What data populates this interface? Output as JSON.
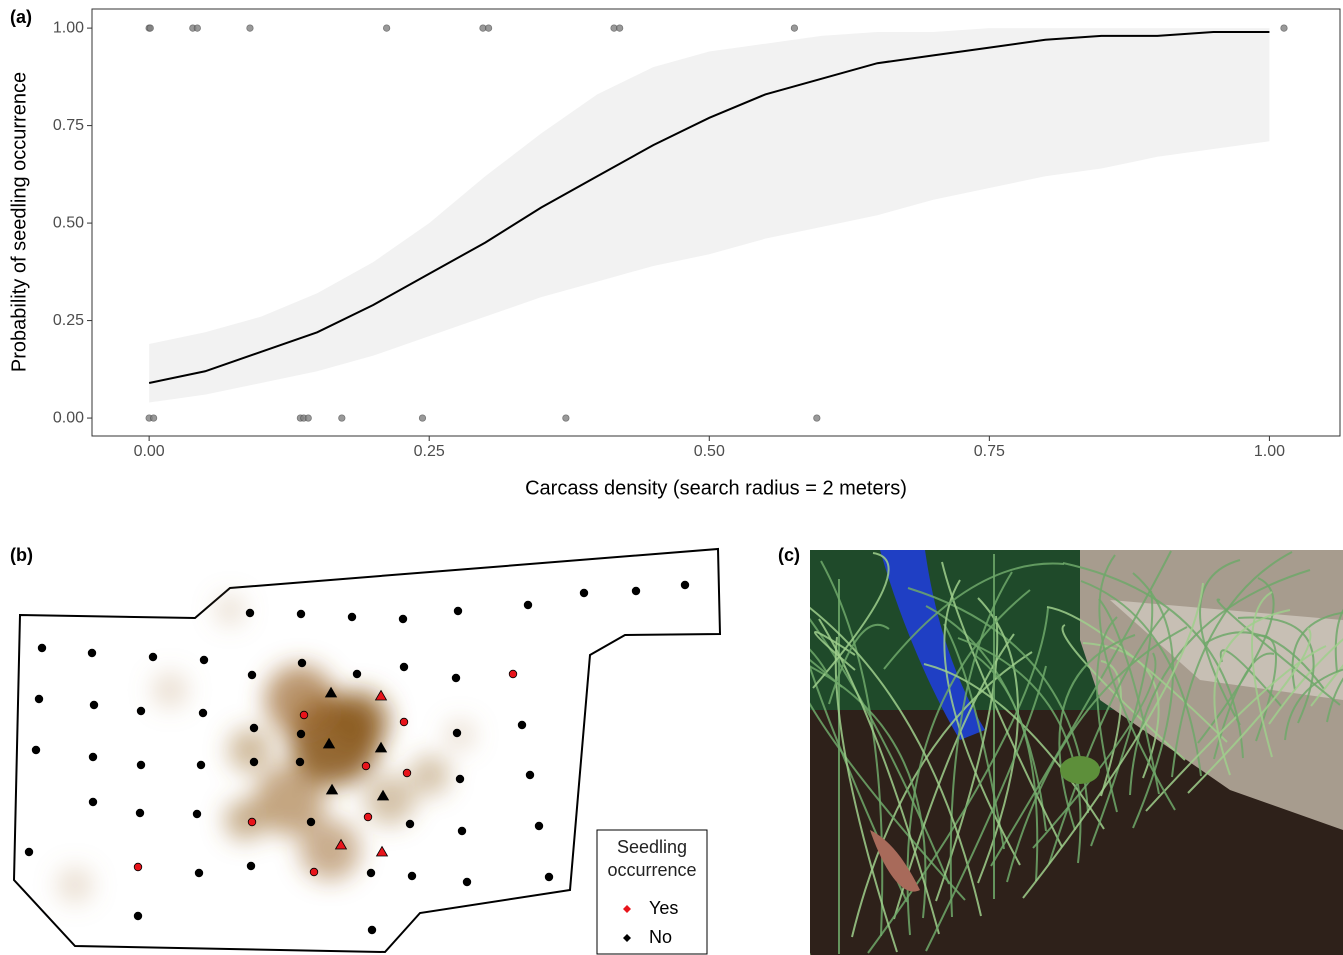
{
  "chart_data": [
    {
      "type": "line",
      "label": "(a)",
      "x_label": "Carcass density (search radius = 2 meters)",
      "y_label": "Probability of seedling occurrence",
      "xlim": [
        -0.051,
        1.063
      ],
      "ylim": [
        -0.046,
        1.049
      ],
      "xticks": [
        {
          "value": 0,
          "label": "0.00"
        },
        {
          "value": 0.25,
          "label": "0.25"
        },
        {
          "value": 0.5,
          "label": "0.50"
        },
        {
          "value": 0.75,
          "label": "0.75"
        },
        {
          "value": 1,
          "label": "1.00"
        }
      ],
      "yticks": [
        {
          "value": 0,
          "label": "0.00"
        },
        {
          "value": 0.25,
          "label": "0.25"
        },
        {
          "value": 0.5,
          "label": "0.50"
        },
        {
          "value": 0.75,
          "label": "0.75"
        },
        {
          "value": 1,
          "label": "1.00"
        }
      ],
      "grid": false,
      "x": [
        0,
        0.05,
        0.1,
        0.15,
        0.2,
        0.25,
        0.3,
        0.35,
        0.4,
        0.45,
        0.5,
        0.55,
        0.6,
        0.65,
        0.7,
        0.75,
        0.8,
        0.85,
        0.9,
        0.95,
        1.0
      ],
      "fit": {
        "color": "#000000",
        "values": [
          0.09,
          0.12,
          0.17,
          0.22,
          0.29,
          0.37,
          0.45,
          0.54,
          0.62,
          0.7,
          0.77,
          0.83,
          0.87,
          0.91,
          0.93,
          0.95,
          0.97,
          0.98,
          0.98,
          0.99,
          0.99
        ]
      },
      "band": {
        "color": "#f2f2f2",
        "lower": [
          0.04,
          0.06,
          0.09,
          0.12,
          0.16,
          0.21,
          0.26,
          0.31,
          0.35,
          0.39,
          0.42,
          0.46,
          0.49,
          0.52,
          0.56,
          0.59,
          0.62,
          0.64,
          0.67,
          0.69,
          0.71
        ],
        "upper": [
          0.19,
          0.22,
          0.26,
          0.32,
          0.4,
          0.5,
          0.62,
          0.73,
          0.83,
          0.9,
          0.94,
          0.96,
          0.98,
          0.99,
          0.99,
          1.0,
          1.0,
          1.0,
          1.0,
          1.0,
          1.0
        ]
      },
      "points": {
        "color": "#808080",
        "x": [
          0,
          0.001,
          0.039,
          0.043,
          0.09,
          0.212,
          0.298,
          0.303,
          0.415,
          0.42,
          0.576,
          1.013,
          0,
          0.004,
          0.135,
          0.138,
          0.142,
          0.172,
          0.244,
          0.372,
          0.596
        ],
        "values": [
          1,
          1,
          1,
          1,
          1,
          1,
          1,
          1,
          1,
          1,
          1,
          1,
          0,
          0,
          0,
          0,
          0,
          0,
          0,
          0,
          0
        ]
      }
    },
    {
      "type": "scatter",
      "label": "(b)",
      "legend_title": "Seedling occurrence",
      "xlim": [
        0,
        720
      ],
      "ylim": [
        960,
        540
      ],
      "series": [
        {
          "name": "Yes",
          "color": "#e8141b",
          "x": [
            513,
            304,
            404,
            366,
            407,
            252,
            368,
            138,
            314,
            381,
            341,
            382
          ],
          "values": [
            674,
            715,
            722,
            766,
            773,
            822,
            817,
            867,
            872,
            696,
            845,
            852
          ],
          "markers": [
            "circle",
            "circle",
            "circle",
            "circle",
            "circle",
            "circle",
            "circle",
            "circle",
            "circle",
            "triangle",
            "triangle",
            "triangle"
          ]
        },
        {
          "name": "No",
          "color": "#000000",
          "x": [
            42,
            92,
            153,
            204,
            252,
            302,
            357,
            404,
            456,
            250,
            301,
            352,
            403,
            458,
            528,
            584,
            636,
            685,
            39,
            94,
            141,
            203,
            254,
            301,
            457,
            522,
            36,
            93,
            141,
            201,
            254,
            300,
            460,
            530,
            93,
            140,
            197,
            311,
            410,
            462,
            539,
            29,
            199,
            251,
            371,
            412,
            467,
            549,
            138,
            372,
            331,
            329,
            381,
            332,
            383
          ],
          "values": [
            648,
            653,
            657,
            660,
            675,
            663,
            674,
            667,
            678,
            613,
            614,
            617,
            619,
            611,
            605,
            593,
            591,
            585,
            699,
            705,
            711,
            713,
            728,
            734,
            733,
            725,
            750,
            757,
            765,
            765,
            762,
            762,
            779,
            775,
            802,
            813,
            814,
            822,
            824,
            831,
            826,
            852,
            873,
            866,
            873,
            876,
            882,
            877,
            916,
            930,
            693,
            744,
            748,
            790,
            796
          ],
          "markers": [
            "circle",
            "circle",
            "circle",
            "circle",
            "circle",
            "circle",
            "circle",
            "circle",
            "circle",
            "circle",
            "circle",
            "circle",
            "circle",
            "circle",
            "circle",
            "circle",
            "circle",
            "circle",
            "circle",
            "circle",
            "circle",
            "circle",
            "circle",
            "circle",
            "circle",
            "circle",
            "circle",
            "circle",
            "circle",
            "circle",
            "circle",
            "circle",
            "circle",
            "circle",
            "circle",
            "circle",
            "circle",
            "circle",
            "circle",
            "circle",
            "circle",
            "circle",
            "circle",
            "circle",
            "circle",
            "circle",
            "circle",
            "circle",
            "circle",
            "circle",
            "triangle",
            "triangle",
            "triangle",
            "triangle",
            "triangle"
          ]
        }
      ]
    }
  ],
  "photo_panel": {
    "label": "(c)"
  }
}
